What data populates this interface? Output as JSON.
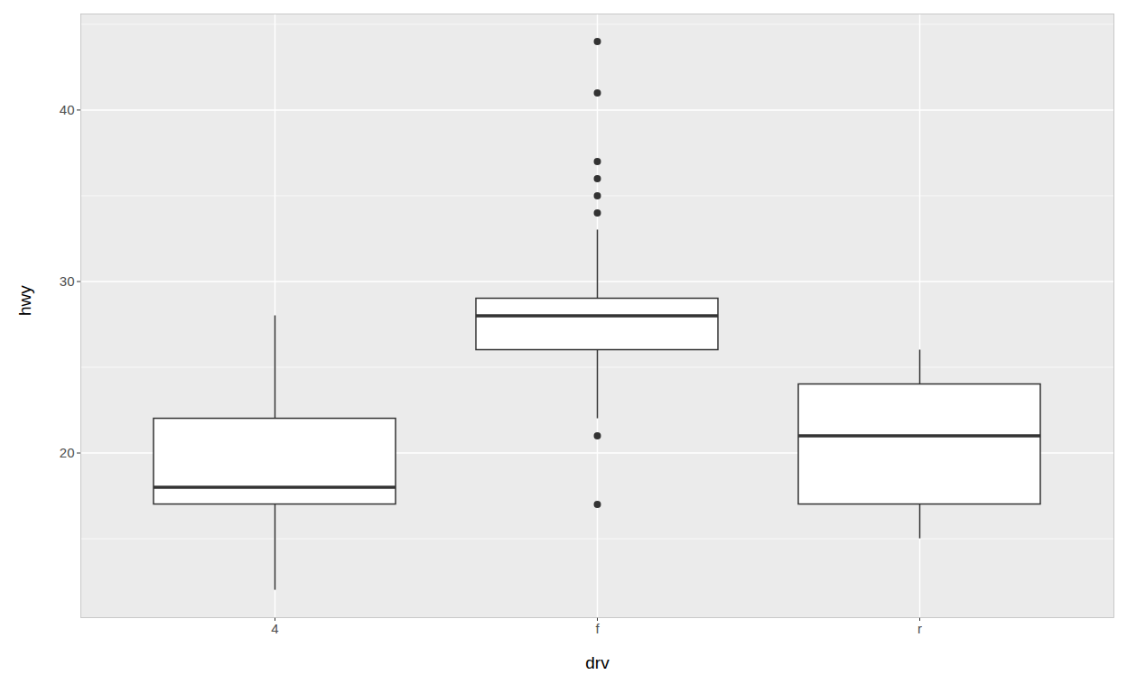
{
  "chart_data": {
    "type": "box",
    "x_label": "drv",
    "y_label": "hwy",
    "categories": [
      "4",
      "f",
      "r"
    ],
    "whisker_low": [
      12,
      22,
      15
    ],
    "q1": [
      17,
      26,
      17
    ],
    "median": [
      18,
      28,
      21
    ],
    "q3": [
      22,
      29,
      24
    ],
    "whisker_high": [
      28,
      33,
      26
    ],
    "outliers": [
      [],
      [
        44,
        41,
        37,
        36,
        35,
        34,
        21,
        17
      ],
      []
    ],
    "color": "#ffffff",
    "ylim": [
      10.4,
      45.6
    ],
    "yticks": [
      20,
      30,
      40
    ],
    "grid": true
  }
}
